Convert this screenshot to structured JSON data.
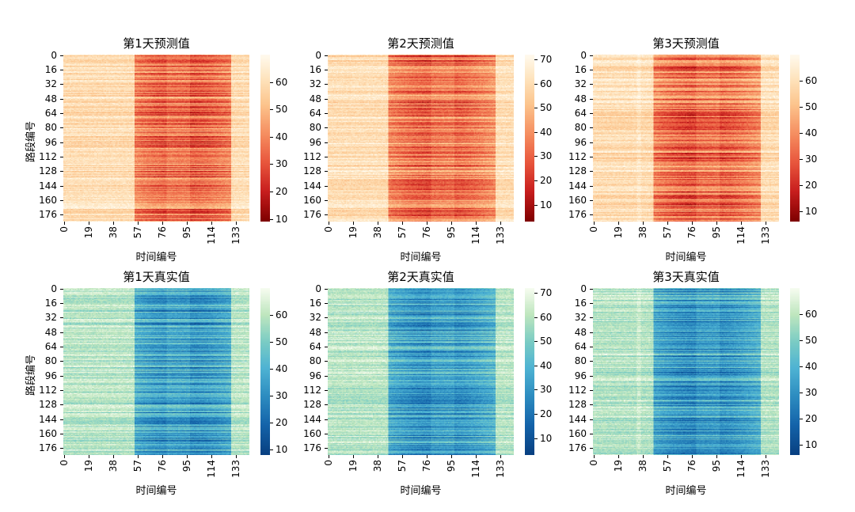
{
  "chart_data": [
    {
      "type": "heatmap",
      "title": "第1天预测值",
      "xlabel": "时间编号",
      "ylabel": "路段编号",
      "colormap": "RdOrYl",
      "row_count": 184,
      "col_count": 144,
      "xticks": [
        "0",
        "19",
        "38",
        "57",
        "76",
        "95",
        "114",
        "133"
      ],
      "yticks": [
        "0",
        "16",
        "32",
        "48",
        "64",
        "80",
        "96",
        "112",
        "128",
        "144",
        "160",
        "176"
      ],
      "colorbar_range": [
        9,
        70
      ],
      "colorbar_ticks": [
        "10",
        "20",
        "30",
        "40",
        "50",
        "60"
      ]
    },
    {
      "type": "heatmap",
      "title": "第2天预测值",
      "xlabel": "时间编号",
      "ylabel": "",
      "colormap": "RdOrYl",
      "row_count": 184,
      "col_count": 144,
      "xticks": [
        "0",
        "19",
        "38",
        "57",
        "76",
        "95",
        "114",
        "133"
      ],
      "yticks": [
        "0",
        "16",
        "32",
        "48",
        "64",
        "80",
        "96",
        "112",
        "128",
        "144",
        "160",
        "176"
      ],
      "colorbar_range": [
        3,
        72
      ],
      "colorbar_ticks": [
        "10",
        "20",
        "30",
        "40",
        "50",
        "60",
        "70"
      ]
    },
    {
      "type": "heatmap",
      "title": "第3天预测值",
      "xlabel": "时间编号",
      "ylabel": "",
      "colormap": "RdOrYl",
      "row_count": 184,
      "col_count": 144,
      "xticks": [
        "0",
        "19",
        "38",
        "57",
        "76",
        "95",
        "114",
        "133"
      ],
      "yticks": [
        "0",
        "16",
        "32",
        "48",
        "64",
        "80",
        "96",
        "112",
        "128",
        "144",
        "160",
        "176"
      ],
      "colorbar_range": [
        6,
        70
      ],
      "colorbar_ticks": [
        "10",
        "20",
        "30",
        "40",
        "50",
        "60"
      ]
    },
    {
      "type": "heatmap",
      "title": "第1天真实值",
      "xlabel": "时间编号",
      "ylabel": "路段编号",
      "colormap": "GnBu",
      "row_count": 184,
      "col_count": 144,
      "xticks": [
        "0",
        "19",
        "38",
        "57",
        "76",
        "95",
        "114",
        "133"
      ],
      "yticks": [
        "0",
        "16",
        "32",
        "48",
        "64",
        "80",
        "96",
        "112",
        "128",
        "144",
        "160",
        "176"
      ],
      "colorbar_range": [
        8,
        70
      ],
      "colorbar_ticks": [
        "10",
        "20",
        "30",
        "40",
        "50",
        "60"
      ]
    },
    {
      "type": "heatmap",
      "title": "第2天真实值",
      "xlabel": "时间编号",
      "ylabel": "",
      "colormap": "GnBu",
      "row_count": 184,
      "col_count": 144,
      "xticks": [
        "0",
        "19",
        "38",
        "57",
        "76",
        "95",
        "114",
        "133"
      ],
      "yticks": [
        "0",
        "16",
        "32",
        "48",
        "64",
        "80",
        "96",
        "112",
        "128",
        "144",
        "160",
        "176"
      ],
      "colorbar_range": [
        3,
        72
      ],
      "colorbar_ticks": [
        "10",
        "20",
        "30",
        "40",
        "50",
        "60",
        "70"
      ]
    },
    {
      "type": "heatmap",
      "title": "第3天真实值",
      "xlabel": "时间编号",
      "ylabel": "",
      "colormap": "GnBu",
      "row_count": 184,
      "col_count": 144,
      "xticks": [
        "0",
        "19",
        "38",
        "57",
        "76",
        "95",
        "114",
        "133"
      ],
      "yticks": [
        "0",
        "16",
        "32",
        "48",
        "64",
        "80",
        "96",
        "112",
        "128",
        "144",
        "160",
        "176"
      ],
      "colorbar_range": [
        6,
        70
      ],
      "colorbar_ticks": [
        "10",
        "20",
        "30",
        "40",
        "50",
        "60"
      ]
    }
  ]
}
